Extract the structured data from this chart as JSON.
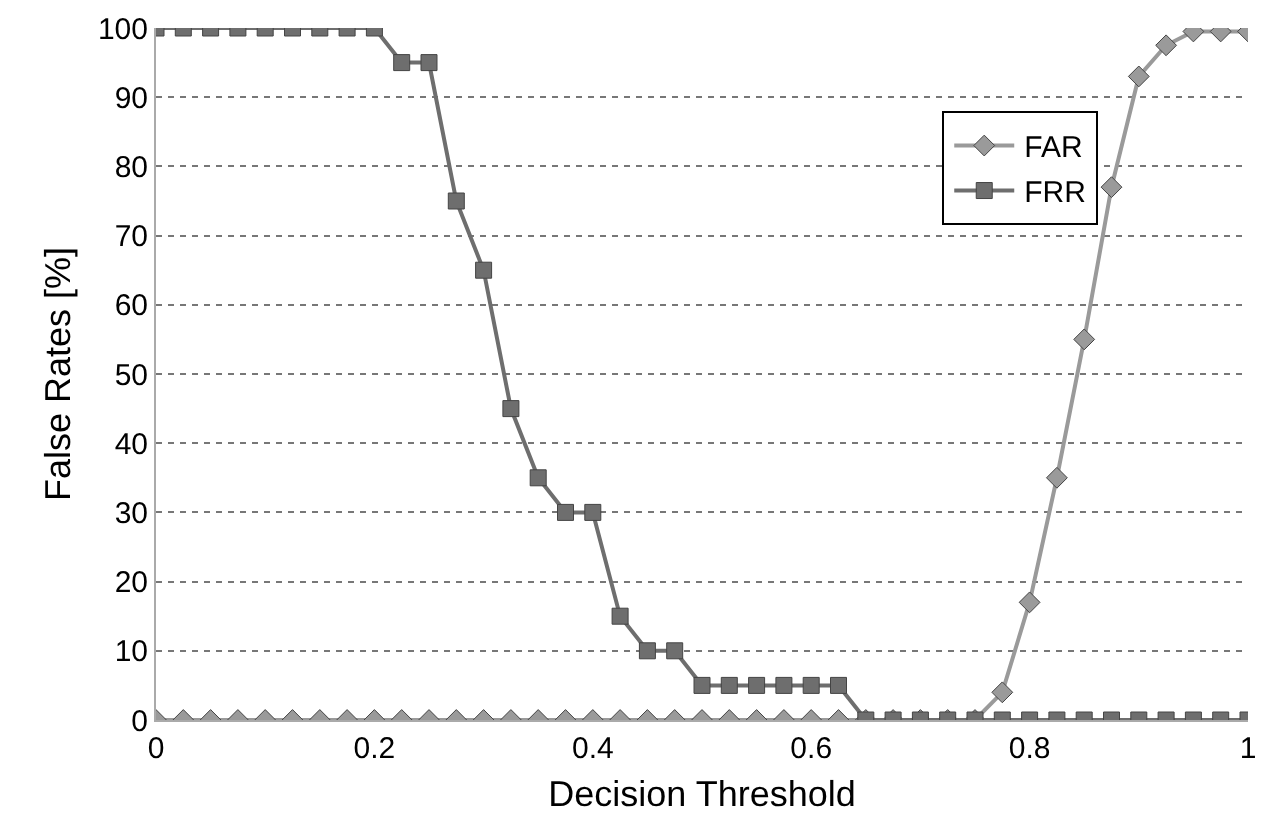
{
  "chart_data": {
    "type": "line",
    "xlabel": "Decision Threshold",
    "ylabel": "False Rates [%]",
    "x": [
      0,
      0.025,
      0.05,
      0.075,
      0.1,
      0.125,
      0.15,
      0.175,
      0.2,
      0.225,
      0.25,
      0.275,
      0.3,
      0.325,
      0.35,
      0.375,
      0.4,
      0.425,
      0.45,
      0.475,
      0.5,
      0.525,
      0.55,
      0.575,
      0.6,
      0.625,
      0.65,
      0.675,
      0.7,
      0.725,
      0.75,
      0.775,
      0.8,
      0.825,
      0.85,
      0.875,
      0.9,
      0.925,
      0.95,
      0.975,
      1
    ],
    "series": [
      {
        "name": "FAR",
        "color": "#9a9a9a",
        "marker": "diamond",
        "values": [
          0,
          0,
          0,
          0,
          0,
          0,
          0,
          0,
          0,
          0,
          0,
          0,
          0,
          0,
          0,
          0,
          0,
          0,
          0,
          0,
          0,
          0,
          0,
          0,
          0,
          0,
          0,
          0,
          0,
          0,
          0,
          4,
          17,
          35,
          55,
          77,
          93,
          97.5,
          99.5,
          99.5,
          99.5
        ]
      },
      {
        "name": "FRR",
        "color": "#6e6e6e",
        "marker": "square",
        "values": [
          100,
          100,
          100,
          100,
          100,
          100,
          100,
          100,
          100,
          95,
          95,
          75,
          65,
          45,
          35,
          30,
          30,
          15,
          10,
          10,
          5,
          5,
          5,
          5,
          5,
          5,
          0,
          0,
          0,
          0,
          0,
          0,
          0,
          0,
          0,
          0,
          0,
          0,
          0,
          0,
          0
        ]
      }
    ],
    "xlim": [
      0,
      1
    ],
    "xticks": [
      0,
      0.2,
      0.4,
      0.6,
      0.8,
      1
    ],
    "ylim": [
      0,
      100
    ],
    "yticks": [
      0,
      10,
      20,
      30,
      40,
      50,
      60,
      70,
      80,
      90,
      100
    ],
    "grid": "y",
    "legend": "top right",
    "line_style": "solid"
  }
}
